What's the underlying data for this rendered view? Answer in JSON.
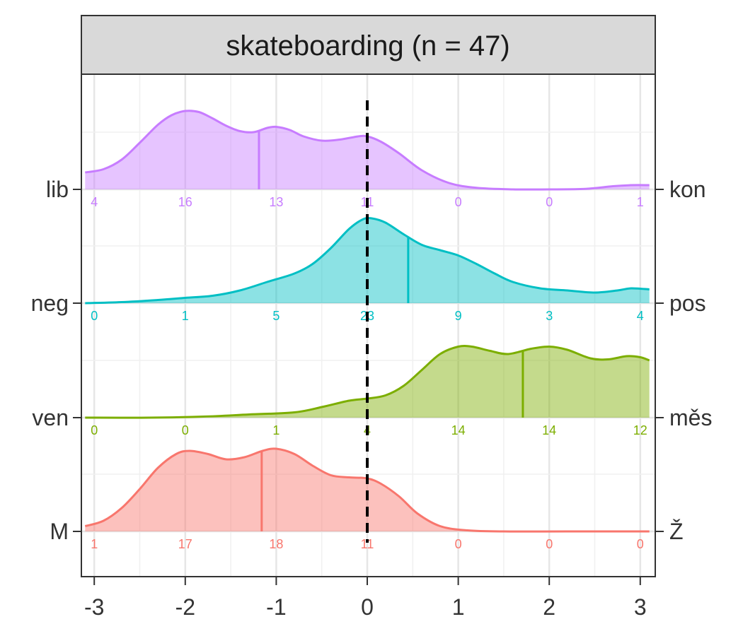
{
  "chart_data": {
    "type": "area",
    "title": "skateboarding (n = 47)",
    "xlabel": "",
    "ylabel": "",
    "xlim": [
      -3.1,
      3.1
    ],
    "x_ticks": [
      -3,
      -2,
      -1,
      0,
      1,
      2,
      3
    ],
    "x_tick_labels": [
      "-3",
      "-2",
      "-1",
      "0",
      "1",
      "2",
      "3"
    ],
    "reference_line": {
      "x": 0,
      "style": "dashed"
    },
    "grid": true,
    "count_positions": [
      -3,
      -2,
      -1,
      0,
      1,
      2,
      3
    ],
    "series": [
      {
        "left_label": "lib",
        "right_label": "kon",
        "color": "#C77CFF",
        "mean": -1.19,
        "counts": [
          "4",
          "16",
          "13",
          "11",
          "0",
          "0",
          "1"
        ],
        "density": [
          [
            -3.1,
            0.16
          ],
          [
            -2.9,
            0.19
          ],
          [
            -2.7,
            0.28
          ],
          [
            -2.5,
            0.44
          ],
          [
            -2.3,
            0.61
          ],
          [
            -2.15,
            0.7
          ],
          [
            -2.0,
            0.74
          ],
          [
            -1.85,
            0.73
          ],
          [
            -1.7,
            0.67
          ],
          [
            -1.55,
            0.6
          ],
          [
            -1.4,
            0.55
          ],
          [
            -1.25,
            0.54
          ],
          [
            -1.1,
            0.58
          ],
          [
            -1.0,
            0.59
          ],
          [
            -0.85,
            0.56
          ],
          [
            -0.7,
            0.5
          ],
          [
            -0.5,
            0.46
          ],
          [
            -0.3,
            0.47
          ],
          [
            -0.1,
            0.5
          ],
          [
            0.0,
            0.5
          ],
          [
            0.15,
            0.45
          ],
          [
            0.35,
            0.34
          ],
          [
            0.6,
            0.18
          ],
          [
            0.9,
            0.06
          ],
          [
            1.2,
            0.015
          ],
          [
            1.6,
            0.0
          ],
          [
            2.0,
            0.0
          ],
          [
            2.4,
            0.005
          ],
          [
            2.7,
            0.03
          ],
          [
            2.9,
            0.04
          ],
          [
            3.1,
            0.04
          ]
        ]
      },
      {
        "left_label": "neg",
        "right_label": "pos",
        "color": "#00BFC4",
        "mean": 0.45,
        "counts": [
          "0",
          "1",
          "5",
          "23",
          "9",
          "3",
          "4"
        ],
        "density": [
          [
            -3.1,
            0.0
          ],
          [
            -2.7,
            0.01
          ],
          [
            -2.3,
            0.03
          ],
          [
            -2.0,
            0.05
          ],
          [
            -1.7,
            0.07
          ],
          [
            -1.4,
            0.12
          ],
          [
            -1.1,
            0.2
          ],
          [
            -0.8,
            0.28
          ],
          [
            -0.6,
            0.37
          ],
          [
            -0.4,
            0.52
          ],
          [
            -0.2,
            0.7
          ],
          [
            -0.05,
            0.79
          ],
          [
            0.05,
            0.8
          ],
          [
            0.2,
            0.76
          ],
          [
            0.4,
            0.65
          ],
          [
            0.6,
            0.55
          ],
          [
            0.8,
            0.5
          ],
          [
            1.0,
            0.45
          ],
          [
            1.2,
            0.37
          ],
          [
            1.4,
            0.28
          ],
          [
            1.6,
            0.2
          ],
          [
            1.9,
            0.14
          ],
          [
            2.2,
            0.12
          ],
          [
            2.5,
            0.1
          ],
          [
            2.75,
            0.12
          ],
          [
            2.9,
            0.14
          ],
          [
            3.1,
            0.13
          ]
        ]
      },
      {
        "left_label": "ven",
        "right_label": "měs",
        "color": "#7CAE00",
        "mean": 1.71,
        "counts": [
          "0",
          "0",
          "1",
          "4",
          "14",
          "14",
          "12"
        ],
        "density": [
          [
            -3.1,
            0.0
          ],
          [
            -2.4,
            0.0
          ],
          [
            -1.8,
            0.01
          ],
          [
            -1.3,
            0.03
          ],
          [
            -0.8,
            0.05
          ],
          [
            -0.5,
            0.1
          ],
          [
            -0.2,
            0.16
          ],
          [
            0.0,
            0.18
          ],
          [
            0.2,
            0.21
          ],
          [
            0.4,
            0.3
          ],
          [
            0.6,
            0.45
          ],
          [
            0.8,
            0.6
          ],
          [
            1.0,
            0.67
          ],
          [
            1.15,
            0.67
          ],
          [
            1.35,
            0.63
          ],
          [
            1.55,
            0.6
          ],
          [
            1.8,
            0.65
          ],
          [
            2.0,
            0.67
          ],
          [
            2.2,
            0.64
          ],
          [
            2.45,
            0.56
          ],
          [
            2.65,
            0.55
          ],
          [
            2.85,
            0.58
          ],
          [
            3.0,
            0.57
          ],
          [
            3.1,
            0.54
          ]
        ]
      },
      {
        "left_label": "M",
        "right_label": "Ž",
        "color": "#F8766D",
        "mean": -1.16,
        "counts": [
          "1",
          "17",
          "18",
          "11",
          "0",
          "0",
          "0"
        ],
        "density": [
          [
            -3.1,
            0.05
          ],
          [
            -2.9,
            0.1
          ],
          [
            -2.7,
            0.22
          ],
          [
            -2.5,
            0.4
          ],
          [
            -2.3,
            0.6
          ],
          [
            -2.1,
            0.73
          ],
          [
            -1.95,
            0.76
          ],
          [
            -1.75,
            0.73
          ],
          [
            -1.55,
            0.68
          ],
          [
            -1.35,
            0.7
          ],
          [
            -1.15,
            0.76
          ],
          [
            -1.0,
            0.78
          ],
          [
            -0.8,
            0.73
          ],
          [
            -0.6,
            0.62
          ],
          [
            -0.4,
            0.53
          ],
          [
            -0.2,
            0.51
          ],
          [
            0.0,
            0.5
          ],
          [
            0.15,
            0.45
          ],
          [
            0.35,
            0.33
          ],
          [
            0.55,
            0.17
          ],
          [
            0.8,
            0.05
          ],
          [
            1.1,
            0.01
          ],
          [
            1.5,
            0.0
          ],
          [
            2.2,
            0.0
          ],
          [
            3.1,
            0.0
          ]
        ]
      }
    ]
  }
}
